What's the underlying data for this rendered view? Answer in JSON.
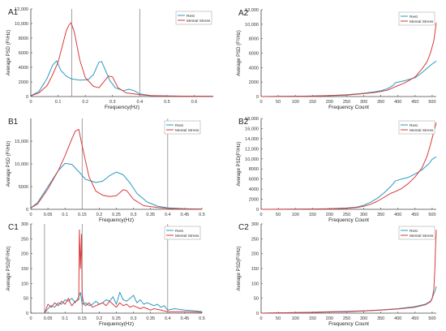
{
  "colors": {
    "rest": "#2a9bc0",
    "stress": "#d93a3a",
    "axis": "#444444",
    "vline": "#888888"
  },
  "chart_data": [
    {
      "id": "A1",
      "type": "line",
      "panel_label": "A1",
      "xlabel": "Frequency(Hz)",
      "ylabel": "Average PSD (F²/Hz)",
      "xlim": [
        0,
        0.67
      ],
      "ylim": [
        0,
        12000
      ],
      "xticks": [
        0,
        0.1,
        0.2,
        0.3,
        0.4,
        0.5,
        0.6
      ],
      "xtick_labels": [
        "0",
        "0.1",
        "0.2",
        "0.3",
        "0.4",
        "0.5",
        "0.6"
      ],
      "yticks": [
        0,
        2000,
        4000,
        6000,
        8000,
        10000,
        12000
      ],
      "ytick_labels": [
        "0",
        "2000",
        "4000",
        "6000",
        "8000",
        "10,000",
        "12,000"
      ],
      "vlines": [
        0.15,
        0.4
      ],
      "legend": "top-right",
      "series": [
        {
          "name": "Rest",
          "x": [
            0,
            0.03,
            0.06,
            0.08,
            0.095,
            0.11,
            0.13,
            0.15,
            0.18,
            0.21,
            0.23,
            0.25,
            0.26,
            0.275,
            0.29,
            0.31,
            0.34,
            0.36,
            0.38,
            0.4,
            0.44,
            0.5,
            0.55,
            0.6,
            0.67
          ],
          "y": [
            100,
            700,
            2500,
            4300,
            4900,
            3600,
            2800,
            2400,
            2250,
            2300,
            3000,
            4700,
            4800,
            3500,
            2200,
            1200,
            800,
            1000,
            800,
            350,
            150,
            80,
            60,
            40,
            30
          ]
        },
        {
          "name": "Mental Stress",
          "x": [
            0,
            0.03,
            0.06,
            0.08,
            0.1,
            0.115,
            0.13,
            0.14,
            0.148,
            0.16,
            0.18,
            0.2,
            0.23,
            0.25,
            0.27,
            0.285,
            0.3,
            0.32,
            0.35,
            0.38,
            0.4,
            0.44,
            0.5,
            0.55,
            0.6,
            0.67
          ],
          "y": [
            100,
            500,
            1500,
            3000,
            4700,
            6800,
            9000,
            9800,
            10100,
            8800,
            5000,
            2600,
            1400,
            1200,
            2100,
            2800,
            2700,
            1200,
            500,
            350,
            250,
            120,
            70,
            50,
            40,
            30
          ]
        }
      ]
    },
    {
      "id": "A2",
      "type": "line",
      "panel_label": "A2",
      "xlabel": "Frequency Count",
      "ylabel": "Average PSD (F²/Hz)",
      "xlim": [
        0,
        512
      ],
      "ylim": [
        0,
        12000
      ],
      "xticks": [
        0,
        50,
        100,
        150,
        200,
        250,
        300,
        350,
        400,
        450,
        500
      ],
      "xtick_labels": [
        "0",
        "50",
        "100",
        "150",
        "200",
        "250",
        "300",
        "350",
        "400",
        "450",
        "500"
      ],
      "yticks": [
        0,
        2000,
        4000,
        6000,
        8000,
        10000,
        12000
      ],
      "ytick_labels": [
        "0",
        "2000",
        "4000",
        "6000",
        "8000",
        "10,000",
        "12,000"
      ],
      "vlines": [],
      "legend": "top-right",
      "series": [
        {
          "name": "Rest",
          "x": [
            0,
            50,
            100,
            150,
            200,
            250,
            300,
            330,
            350,
            370,
            385,
            392,
            420,
            450,
            470,
            490,
            500,
            512
          ],
          "y": [
            0,
            20,
            40,
            80,
            150,
            250,
            450,
            650,
            800,
            1100,
            1500,
            1900,
            2200,
            2600,
            3300,
            4100,
            4500,
            4900
          ]
        },
        {
          "name": "Mental Stress",
          "x": [
            0,
            50,
            100,
            150,
            200,
            250,
            300,
            330,
            350,
            370,
            385,
            395,
            420,
            450,
            470,
            485,
            495,
            505,
            512
          ],
          "y": [
            0,
            15,
            30,
            60,
            120,
            200,
            400,
            550,
            700,
            900,
            1200,
            1400,
            1900,
            2700,
            3800,
            4800,
            6000,
            7700,
            10200
          ]
        }
      ]
    },
    {
      "id": "B1",
      "type": "line",
      "panel_label": "B1",
      "xlabel": "Frequency(Hz)",
      "ylabel": "Average PSD (F²/Hz)",
      "xlim": [
        0,
        0.5
      ],
      "ylim": [
        0,
        20000
      ],
      "xticks": [
        0,
        0.05,
        0.1,
        0.15,
        0.2,
        0.25,
        0.3,
        0.35,
        0.4,
        0.45,
        0.5
      ],
      "xtick_labels": [
        "0",
        "0.05",
        "0.1",
        "0.15",
        "0.2",
        "0.25",
        "0.3",
        "0.35",
        "0.4",
        "0.45",
        "0.5"
      ],
      "yticks": [
        0,
        5000,
        10000,
        15000
      ],
      "ytick_labels": [
        "0",
        "5000",
        "10,000",
        "15,000"
      ],
      "vlines": [
        0.15,
        0.4
      ],
      "legend": "top-right",
      "series": [
        {
          "name": "Rest",
          "x": [
            0,
            0.02,
            0.05,
            0.08,
            0.1,
            0.12,
            0.14,
            0.16,
            0.19,
            0.21,
            0.23,
            0.25,
            0.27,
            0.29,
            0.31,
            0.34,
            0.37,
            0.4,
            0.45,
            0.5
          ],
          "y": [
            300,
            1500,
            5000,
            8500,
            10100,
            9900,
            8300,
            6600,
            5900,
            6200,
            7400,
            8200,
            7600,
            5800,
            3500,
            1600,
            700,
            300,
            150,
            50
          ]
        },
        {
          "name": "Mental Stress",
          "x": [
            0,
            0.02,
            0.05,
            0.08,
            0.1,
            0.12,
            0.13,
            0.14,
            0.15,
            0.17,
            0.19,
            0.21,
            0.23,
            0.25,
            0.27,
            0.28,
            0.3,
            0.33,
            0.37,
            0.4,
            0.45,
            0.5
          ],
          "y": [
            300,
            1200,
            4500,
            8500,
            11800,
            15500,
            17200,
            17600,
            14000,
            7200,
            4000,
            3100,
            2800,
            3000,
            4300,
            4100,
            2200,
            800,
            400,
            200,
            80,
            30
          ]
        }
      ]
    },
    {
      "id": "B2",
      "type": "line",
      "panel_label": "B2",
      "xlabel": "Frequency Count",
      "ylabel": "Average PSD(F²/Hz)",
      "xlim": [
        0,
        512
      ],
      "ylim": [
        0,
        18000
      ],
      "xticks": [
        0,
        50,
        100,
        150,
        200,
        250,
        300,
        350,
        400,
        450,
        500
      ],
      "xtick_labels": [
        "0",
        "50",
        "100",
        "150",
        "200",
        "250",
        "300",
        "350",
        "400",
        "450",
        "500"
      ],
      "yticks": [
        0,
        2000,
        4000,
        6000,
        8000,
        10000,
        12000,
        14000,
        16000,
        18000
      ],
      "ytick_labels": [
        "0",
        "2000",
        "4000",
        "6000",
        "8000",
        "10,000",
        "12,000",
        "14,000",
        "16,000",
        "18,000"
      ],
      "vlines": [],
      "legend": "top-right",
      "series": [
        {
          "name": "Rest",
          "x": [
            0,
            50,
            100,
            150,
            200,
            250,
            280,
            300,
            320,
            340,
            360,
            380,
            392,
            410,
            430,
            450,
            470,
            490,
            500,
            512
          ],
          "y": [
            0,
            10,
            30,
            60,
            120,
            250,
            450,
            800,
            1400,
            2200,
            3300,
            4600,
            5600,
            6000,
            6300,
            7000,
            7800,
            9000,
            9900,
            10400
          ]
        },
        {
          "name": "Mental Stress",
          "x": [
            0,
            50,
            100,
            150,
            200,
            250,
            280,
            300,
            320,
            340,
            360,
            380,
            392,
            410,
            430,
            450,
            470,
            485,
            495,
            505,
            512
          ],
          "y": [
            0,
            8,
            20,
            45,
            90,
            200,
            350,
            600,
            1000,
            1600,
            2400,
            3200,
            3500,
            4100,
            5100,
            6400,
            8200,
            10500,
            12800,
            15400,
            17200
          ]
        }
      ]
    },
    {
      "id": "C1",
      "type": "line",
      "panel_label": "C1",
      "xlabel": "Frequency(Hz)",
      "ylabel": "Average PSD(F²/Hz)",
      "xlim": [
        0,
        0.5
      ],
      "ylim": [
        0,
        300
      ],
      "xticks": [
        0,
        0.05,
        0.1,
        0.15,
        0.2,
        0.25,
        0.3,
        0.35,
        0.4,
        0.45,
        0.5
      ],
      "xtick_labels": [
        "0",
        "0.05",
        "0.1",
        "0.15",
        "0.2",
        "0.25",
        "0.3",
        "0.35",
        "0.4",
        "0.45",
        "0.5"
      ],
      "yticks": [
        0,
        50,
        100,
        150,
        200,
        250,
        300
      ],
      "ytick_labels": [
        "0",
        "50",
        "100",
        "150",
        "200",
        "250",
        "300"
      ],
      "vlines": [
        0.04,
        0.15,
        0.4
      ],
      "legend": "top-right",
      "series": [
        {
          "name": "Rest",
          "x": [
            0.04,
            0.05,
            0.06,
            0.07,
            0.08,
            0.09,
            0.1,
            0.11,
            0.12,
            0.13,
            0.14,
            0.145,
            0.15,
            0.16,
            0.17,
            0.18,
            0.19,
            0.2,
            0.21,
            0.22,
            0.23,
            0.24,
            0.25,
            0.26,
            0.27,
            0.28,
            0.29,
            0.3,
            0.31,
            0.32,
            0.33,
            0.34,
            0.35,
            0.36,
            0.37,
            0.38,
            0.39,
            0.4,
            0.42,
            0.45,
            0.48,
            0.5
          ],
          "y": [
            0,
            15,
            25,
            20,
            35,
            30,
            45,
            40,
            50,
            35,
            55,
            70,
            30,
            35,
            25,
            30,
            40,
            30,
            35,
            45,
            40,
            55,
            30,
            70,
            45,
            40,
            50,
            60,
            35,
            45,
            30,
            35,
            30,
            25,
            30,
            20,
            25,
            10,
            15,
            10,
            8,
            5
          ]
        },
        {
          "name": "Mental Stress",
          "x": [
            0.04,
            0.05,
            0.06,
            0.07,
            0.08,
            0.09,
            0.1,
            0.11,
            0.115,
            0.12,
            0.13,
            0.14,
            0.142,
            0.145,
            0.148,
            0.15,
            0.155,
            0.16,
            0.17,
            0.18,
            0.19,
            0.2,
            0.21,
            0.22,
            0.23,
            0.24,
            0.25,
            0.26,
            0.27,
            0.28,
            0.29,
            0.3,
            0.31,
            0.32,
            0.33,
            0.34,
            0.35,
            0.36,
            0.38,
            0.4,
            0.45,
            0.5
          ],
          "y": [
            0,
            30,
            20,
            35,
            25,
            40,
            30,
            50,
            35,
            25,
            40,
            45,
            280,
            150,
            265,
            60,
            30,
            25,
            35,
            20,
            25,
            30,
            35,
            25,
            40,
            30,
            20,
            35,
            25,
            30,
            20,
            25,
            20,
            15,
            20,
            15,
            10,
            15,
            10,
            5,
            5,
            3
          ]
        }
      ]
    },
    {
      "id": "C2",
      "type": "line",
      "panel_label": "C2",
      "xlabel": "Frequency Count",
      "ylabel": "Average PSD(F²/Hz)",
      "xlim": [
        0,
        512
      ],
      "ylim": [
        0,
        300
      ],
      "xticks": [
        0,
        50,
        100,
        150,
        200,
        250,
        300,
        350,
        400,
        450,
        500
      ],
      "xtick_labels": [
        "0",
        "50",
        "100",
        "150",
        "200",
        "250",
        "300",
        "350",
        "400",
        "450",
        "500"
      ],
      "yticks": [
        0,
        50,
        100,
        150,
        200,
        250,
        300
      ],
      "ytick_labels": [
        "0",
        "50",
        "100",
        "150",
        "200",
        "250",
        "300"
      ],
      "vlines": [],
      "legend": "top-right",
      "series": [
        {
          "name": "Rest",
          "x": [
            0,
            50,
            100,
            150,
            200,
            250,
            300,
            350,
            400,
            450,
            480,
            495,
            500,
            505,
            510,
            512
          ],
          "y": [
            0,
            1,
            2,
            3,
            5,
            6,
            8,
            11,
            15,
            22,
            30,
            40,
            50,
            65,
            80,
            90
          ]
        },
        {
          "name": "Mental Stress",
          "x": [
            0,
            50,
            100,
            150,
            200,
            250,
            300,
            350,
            400,
            450,
            480,
            495,
            500,
            505,
            508,
            510,
            512
          ],
          "y": [
            0,
            1,
            1.5,
            2.5,
            4,
            5,
            7,
            10,
            14,
            20,
            28,
            38,
            48,
            80,
            150,
            230,
            280
          ]
        }
      ]
    }
  ]
}
